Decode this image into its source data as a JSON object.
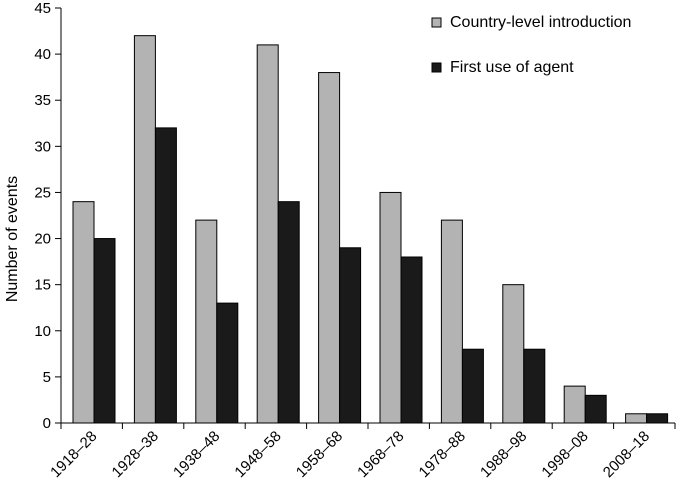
{
  "chart_data": {
    "type": "bar",
    "categories": [
      "1918–28",
      "1928–38",
      "1938–48",
      "1948–58",
      "1958–68",
      "1968–78",
      "1978–88",
      "1988–98",
      "1998–08",
      "2008–18"
    ],
    "series": [
      {
        "name": "Country-level introduction",
        "values": [
          24,
          42,
          22,
          41,
          38,
          25,
          22,
          15,
          4,
          1
        ],
        "color": "#b3b3b3"
      },
      {
        "name": "First use of agent",
        "values": [
          20,
          32,
          13,
          24,
          19,
          18,
          8,
          8,
          3,
          1
        ],
        "color": "#1a1a1a"
      }
    ],
    "ylabel": "Number of events",
    "xlabel": "",
    "ylim": [
      0,
      45
    ],
    "yticks": [
      0,
      5,
      10,
      15,
      20,
      25,
      30,
      35,
      40,
      45
    ],
    "grid": false,
    "legend_position": "top-right"
  }
}
